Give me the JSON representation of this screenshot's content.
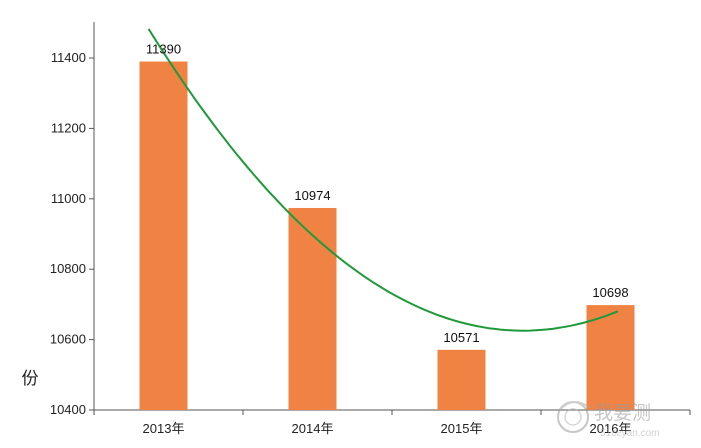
{
  "chart_data": {
    "type": "bar",
    "title": "",
    "xlabel": "",
    "ylabel": "份",
    "categories": [
      "2013年",
      "2014年",
      "2015年",
      "2016年"
    ],
    "values": [
      11390,
      10974,
      10571,
      10698
    ],
    "data_labels": [
      "11390",
      "10974",
      "10571",
      "10698"
    ],
    "ylim": [
      10400,
      11400
    ],
    "y_ticks": [
      10400,
      10600,
      10800,
      11000,
      11200,
      11400
    ],
    "y_tick_labels": [
      "10400",
      "10600",
      "10800",
      "11000",
      "11200",
      "11400"
    ],
    "grid": false,
    "legend": "none",
    "bar_color": "#f08243",
    "trendline": {
      "type": "polynomial",
      "color": "#1f9a3a"
    },
    "watermark": "我要测 51ceyan.com"
  }
}
